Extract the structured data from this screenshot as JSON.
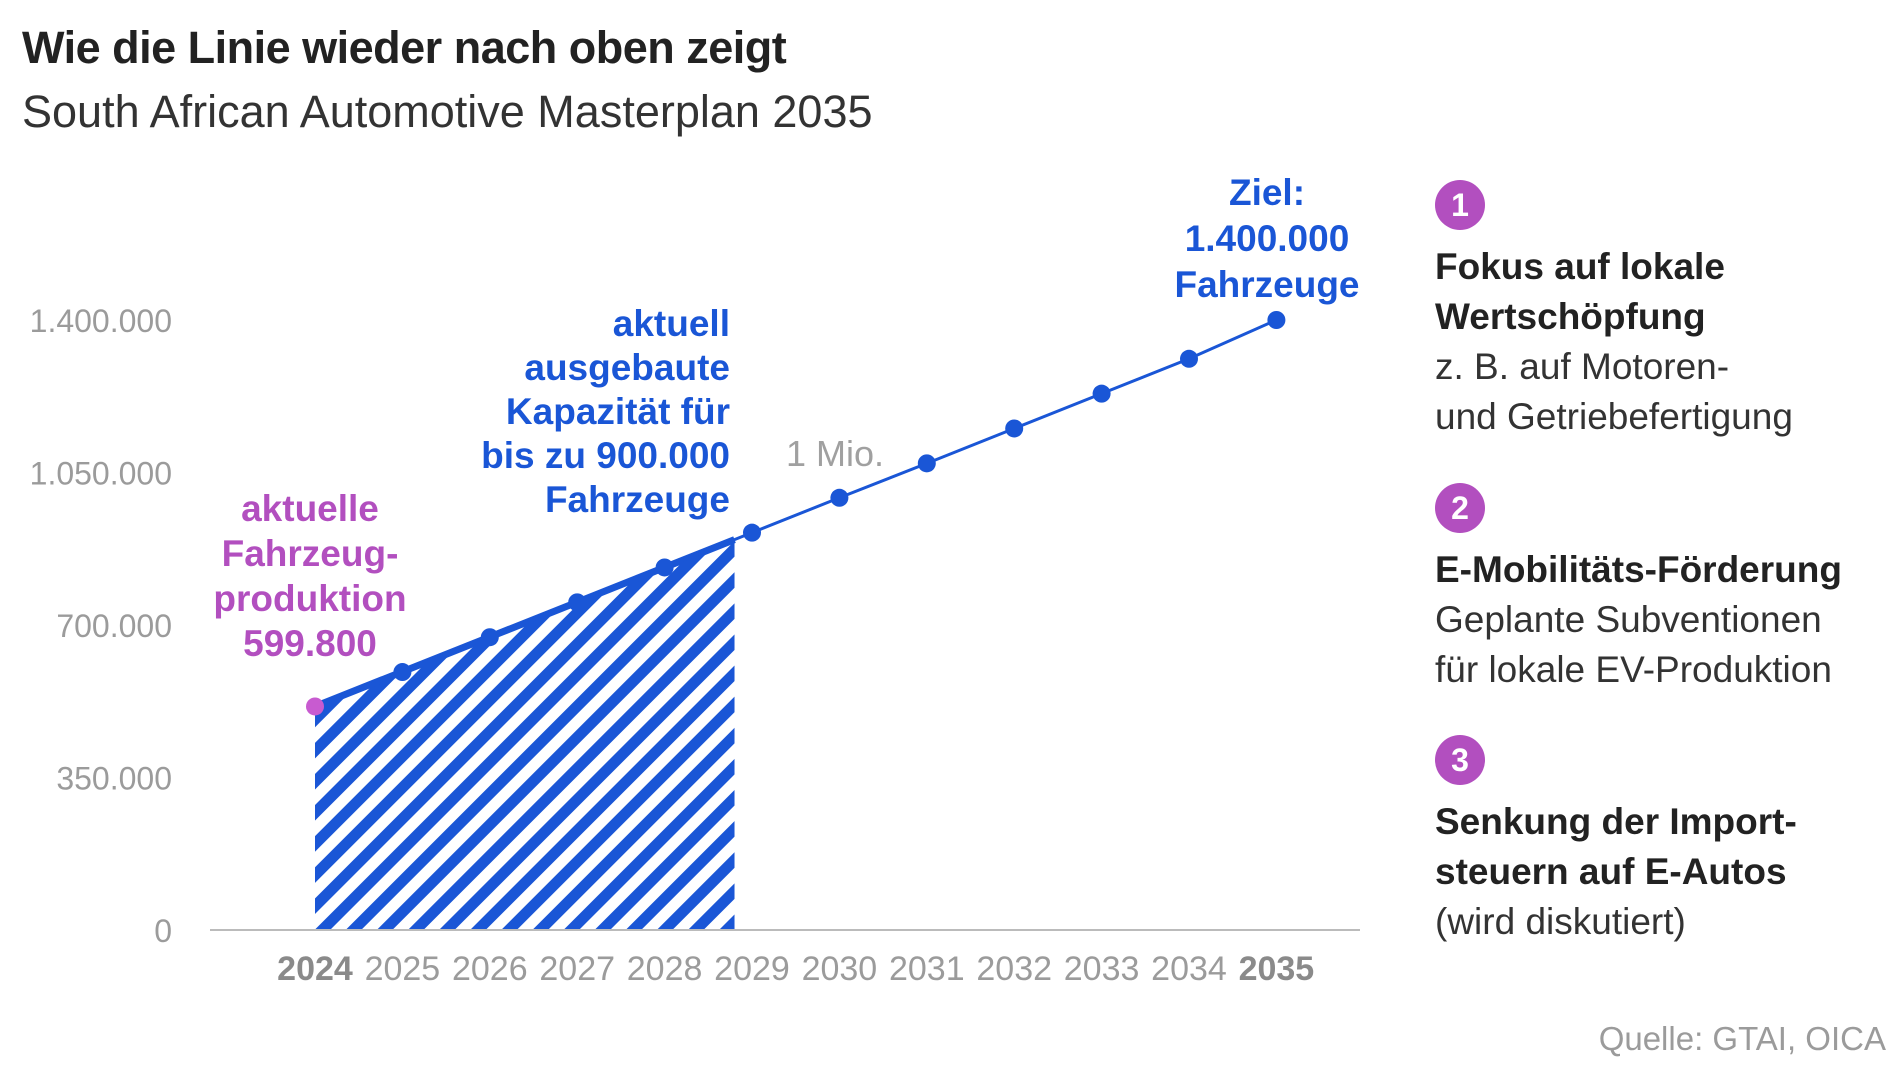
{
  "header": {
    "title": "Wie die Linie wieder nach oben zeigt",
    "subtitle": "South African Automotive Masterplan 2035"
  },
  "chart_data": {
    "type": "line",
    "x": [
      2024,
      2025,
      2026,
      2027,
      2028,
      2029,
      2030,
      2031,
      2032,
      2033,
      2034,
      2035
    ],
    "x_tick_labels": [
      "2024",
      "2025",
      "2026",
      "2027",
      "2028",
      "2029",
      "2030",
      "2031",
      "2032",
      "2033",
      "2034",
      "2035"
    ],
    "bold_x_ticks": [
      "2024",
      "2035"
    ],
    "values": [
      513000,
      592000,
      672000,
      752000,
      832000,
      912000,
      992000,
      1071000,
      1151000,
      1231000,
      1311000,
      1400000
    ],
    "ylim": [
      0,
      1400000
    ],
    "y_ticks": [
      0,
      350000,
      700000,
      1050000,
      1400000
    ],
    "y_tick_labels": [
      "0",
      "350.000",
      "700.000",
      "1.050.000",
      "1.400.000"
    ],
    "hatched_range": [
      2024,
      2028.8
    ],
    "grid": false,
    "colors": {
      "line": "#1a56d6",
      "start_point": "#c85bd0",
      "hatch": "#1a56d6",
      "axis": "#bbbbbb"
    },
    "annotations": {
      "current_production": [
        "aktuelle",
        "Fahrzeug-",
        "produktion",
        "599.800"
      ],
      "current_capacity": [
        "aktuell",
        "ausgebaute",
        "Kapazität für",
        "bis zu 900.000",
        "Fahrzeuge"
      ],
      "one_million": "1 Mio.",
      "target": [
        "Ziel:",
        "1.400.000",
        "Fahrzeuge"
      ]
    }
  },
  "side_panel": [
    {
      "number": "1",
      "heading": [
        "Fokus auf lokale",
        "Wertschöpfung"
      ],
      "text": [
        "z. B. auf Motoren-",
        "und Getriebefertigung"
      ]
    },
    {
      "number": "2",
      "heading": [
        "E-Mobilitäts-Förderung"
      ],
      "text": [
        "Geplante Subventionen",
        "für lokale EV-Produktion"
      ]
    },
    {
      "number": "3",
      "heading": [
        "Senkung der Import-",
        "steuern auf E-Autos"
      ],
      "text": [
        "(wird diskutiert)"
      ]
    }
  ],
  "source": "Quelle: GTAI, OICA"
}
